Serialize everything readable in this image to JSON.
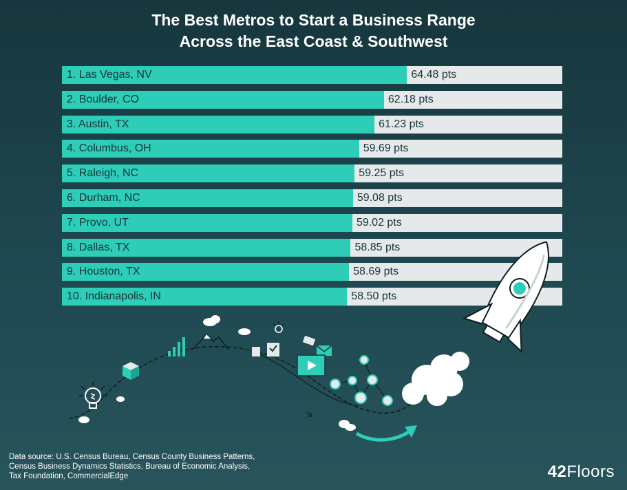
{
  "chart_data": {
    "type": "bar",
    "orientation": "horizontal",
    "title_lines": [
      "The Best Metros to Start a Business Range",
      "Across the East Coast & Southwest"
    ],
    "categories": [
      "1. Las Vegas, NV",
      "2. Boulder, CO",
      "3. Austin, TX",
      "4. Columbus, OH",
      "5. Raleigh, NC",
      "6. Durham, NC",
      "7. Provo, UT",
      "8. Dallas, TX",
      "9. Houston, TX",
      "10. Indianapolis, IN"
    ],
    "values": [
      64.48,
      62.18,
      61.23,
      59.69,
      59.25,
      59.08,
      59.02,
      58.85,
      58.69,
      58.5
    ],
    "value_labels": [
      "64.48 pts",
      "62.18 pts",
      "61.23 pts",
      "59.69 pts",
      "59.25 pts",
      "59.08 pts",
      "59.02 pts",
      "58.85 pts",
      "58.69 pts",
      "58.50 pts"
    ],
    "unit": "pts",
    "grid": false,
    "legend": "none",
    "colors": {
      "bar": "#2ecdb8",
      "track": "#e6e9ea",
      "background": "#1d434a",
      "text": "#163438"
    }
  },
  "source_lines": [
    "Data source: U.S. Census Bureau, Census County Business Patterns,",
    "Census Business Dynamics Statistics, Bureau of Economic Analysis,",
    "Tax Foundation, CommercialEdge"
  ],
  "logo": {
    "number": "42",
    "word": "Floors"
  },
  "illustration_icons": [
    "rocket-icon",
    "lightbulb-icon",
    "cube-icon",
    "bar-chart-icon",
    "mountain-icon",
    "cloud-icon",
    "checklist-icon",
    "envelope-icon",
    "video-icon",
    "network-icon",
    "arrow-icon"
  ]
}
